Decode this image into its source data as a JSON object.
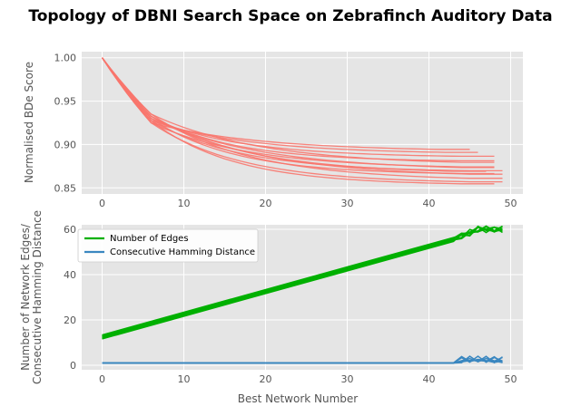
{
  "figure": {
    "title": "Topology of DBNI Search Space on Zebrafinch Auditory Data",
    "xlabel": "Best Network Number"
  },
  "chart_data": [
    {
      "type": "line",
      "ylabel": "Normalised BDe Score",
      "xlim": [
        -2.5,
        51.5
      ],
      "ylim": [
        0.843,
        1.007
      ],
      "xticks": [
        0,
        10,
        20,
        30,
        40,
        50
      ],
      "yticks": [
        0.85,
        0.9,
        0.95,
        1.0
      ],
      "ytick_labels": [
        "0.85",
        "0.90",
        "0.95",
        "1.00"
      ],
      "grid": true,
      "series_color": "#f8766d",
      "series": [
        {
          "end_x": 45,
          "end_y": 0.892
        },
        {
          "end_x": 46,
          "end_y": 0.889
        },
        {
          "end_x": 48,
          "end_y": 0.885
        },
        {
          "end_x": 48,
          "end_y": 0.88
        },
        {
          "end_x": 48,
          "end_y": 0.876
        },
        {
          "end_x": 48,
          "end_y": 0.872
        },
        {
          "end_x": 49,
          "end_y": 0.868
        },
        {
          "end_x": 48,
          "end_y": 0.865
        },
        {
          "end_x": 49,
          "end_y": 0.862
        },
        {
          "end_x": 49,
          "end_y": 0.858
        },
        {
          "end_x": 49,
          "end_y": 0.855
        },
        {
          "end_x": 48,
          "end_y": 0.853
        },
        {
          "end_x": 48,
          "end_y": 0.87
        },
        {
          "end_x": 47,
          "end_y": 0.866
        }
      ]
    },
    {
      "type": "line",
      "ylabel_lines": [
        "Number of Network Edges/",
        "Consecutive Hamming Distance"
      ],
      "xlim": [
        -2.5,
        51.5
      ],
      "ylim": [
        -2,
        62
      ],
      "xticks": [
        0,
        10,
        20,
        30,
        40,
        50
      ],
      "yticks": [
        0,
        20,
        40,
        60
      ],
      "grid": true,
      "legend_position": "upper left",
      "series": [
        {
          "name": "Number of Edges",
          "color": "#00b000",
          "start": [
            0,
            12.5
          ],
          "linear_end": [
            43,
            55.5
          ],
          "plateau_x": [
            43,
            49
          ],
          "plateau_y": [
            55.5,
            60
          ]
        },
        {
          "name": "Consecutive Hamming Distance",
          "color": "#3a87c0",
          "baseline": 1,
          "spike_x": [
            43,
            49
          ],
          "spike_max": 4
        }
      ]
    }
  ]
}
